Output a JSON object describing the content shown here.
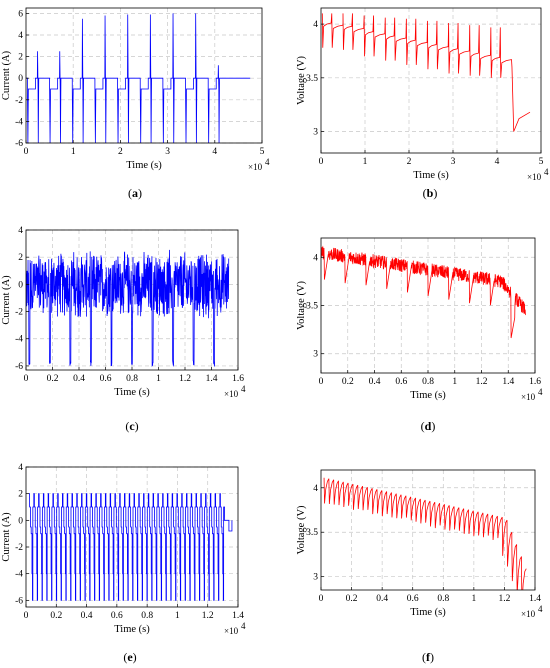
{
  "figure": {
    "panels": [
      {
        "id": "a",
        "label_open": "(",
        "label_letter": "a",
        "label_close": ")"
      },
      {
        "id": "b",
        "label_open": "(",
        "label_letter": "b",
        "label_close": ")"
      },
      {
        "id": "c",
        "label_open": "(",
        "label_letter": "c",
        "label_close": ")"
      },
      {
        "id": "d",
        "label_open": "(",
        "label_letter": "d",
        "label_close": ")"
      },
      {
        "id": "e",
        "label_open": "(",
        "label_letter": "e",
        "label_close": ")"
      },
      {
        "id": "f",
        "label_open": "(",
        "label_letter": "f",
        "label_close": ")"
      }
    ]
  },
  "chart_data": [
    {
      "id": "a",
      "type": "line",
      "color": "#0000ff",
      "xlabel": "Time (s)",
      "ylabel": "Current (A)",
      "x_multiplier": "×10",
      "x_exponent": "4",
      "xlim": [
        0,
        5
      ],
      "ylim": [
        -6,
        6.5
      ],
      "xticks": [
        "0",
        "1",
        "2",
        "3",
        "4",
        "5"
      ],
      "xtick_values": [
        0,
        1,
        2,
        3,
        4,
        5
      ],
      "yticks": [
        "-6",
        "-4",
        "-2",
        "0",
        "2",
        "4",
        "6"
      ],
      "ytick_values": [
        -6,
        -4,
        -2,
        0,
        2,
        4,
        6
      ],
      "grid": true,
      "series": [
        {
          "profile": "pulse_cycles",
          "cycles_start": [
            0.03,
            0.5,
            0.98,
            1.46,
            1.94,
            2.42,
            2.9,
            3.38,
            3.86
          ],
          "pulse_peaks": [
            2.5,
            2.5,
            5.5,
            5.8,
            5.9,
            5.9,
            6.0,
            6.0,
            1.2
          ],
          "discharge_level": -1,
          "min_spike": -6,
          "rest_level": 0,
          "end_x": 4.75
        }
      ]
    },
    {
      "id": "b",
      "type": "line",
      "color": "#ff0000",
      "xlabel": "Time (s)",
      "ylabel": "Voltage (V)",
      "x_multiplier": "×10",
      "x_exponent": "4",
      "xlim": [
        0,
        5
      ],
      "ylim": [
        2.8,
        4.15
      ],
      "xticks": [
        "0",
        "1",
        "2",
        "3",
        "4",
        "5"
      ],
      "xtick_values": [
        0,
        1,
        2,
        3,
        4,
        5
      ],
      "yticks": [
        "3",
        "3.5",
        "4"
      ],
      "ytick_values": [
        3,
        3.5,
        4
      ],
      "grid": true,
      "series": [
        {
          "profile": "voltage_steps",
          "cycle_starts": [
            0.03,
            0.5,
            0.98,
            1.46,
            1.94,
            2.42,
            2.9,
            3.38,
            3.86
          ],
          "rest_levels": [
            4.0,
            3.97,
            3.92,
            3.88,
            3.84,
            3.8,
            3.76,
            3.72,
            3.68
          ],
          "peak_levels": [
            4.1,
            4.1,
            4.08,
            4.06,
            4.05,
            4.03,
            4.01,
            3.99,
            3.97
          ],
          "dip_levels": [
            3.78,
            3.76,
            3.7,
            3.66,
            3.62,
            3.58,
            3.54,
            3.52,
            3.5
          ],
          "tail": [
            [
              4.34,
              3.6
            ],
            [
              4.38,
              3.0
            ],
            [
              4.5,
              3.12
            ],
            [
              4.75,
              3.18
            ]
          ]
        }
      ]
    },
    {
      "id": "c",
      "type": "line",
      "color": "#0000ff",
      "xlabel": "Time (s)",
      "ylabel": "Current (A)",
      "x_multiplier": "×10",
      "x_exponent": "4",
      "xlim": [
        0,
        1.6
      ],
      "ylim": [
        -6.3,
        4
      ],
      "xticks": [
        "0",
        "0.2",
        "0.4",
        "0.6",
        "0.8",
        "1",
        "1.2",
        "1.4",
        "1.6"
      ],
      "xtick_values": [
        0,
        0.2,
        0.4,
        0.6,
        0.8,
        1,
        1.2,
        1.4,
        1.6
      ],
      "yticks": [
        "-6",
        "-4",
        "-2",
        "0",
        "2",
        "4"
      ],
      "ytick_values": [
        -6,
        -4,
        -2,
        0,
        2,
        4
      ],
      "grid": true,
      "series": [
        {
          "profile": "noisy_current",
          "spike_x": [
            0.025,
            0.18,
            0.335,
            0.49,
            0.645,
            0.8,
            0.955,
            1.11,
            1.265,
            1.42
          ],
          "noise_amplitude": 2.6,
          "min_spike": -6,
          "end_x": 1.53
        }
      ]
    },
    {
      "id": "d",
      "type": "line",
      "color": "#ff0000",
      "xlabel": "Time (s)",
      "ylabel": "Voltage (V)",
      "x_multiplier": "×10",
      "x_exponent": "4",
      "xlim": [
        0,
        1.6
      ],
      "ylim": [
        2.8,
        4.2
      ],
      "xticks": [
        "0",
        "0.2",
        "0.4",
        "0.6",
        "0.8",
        "1",
        "1.2",
        "1.4",
        "1.6"
      ],
      "xtick_values": [
        0,
        0.2,
        0.4,
        0.6,
        0.8,
        1,
        1.2,
        1.4,
        1.6
      ],
      "yticks": [
        "3",
        "3.5",
        "4"
      ],
      "ytick_values": [
        3,
        3.5,
        4
      ],
      "grid": true,
      "series": [
        {
          "profile": "noisy_voltage",
          "start": 4.05,
          "mid": 3.75,
          "end": 3.45,
          "knee_x": 1.35,
          "dip_x": [
            0.025,
            0.18,
            0.335,
            0.49,
            0.645,
            0.8,
            0.955,
            1.11,
            1.265,
            1.42
          ],
          "dip_depth": 0.28,
          "noise": 0.07,
          "end_x": 1.53
        }
      ]
    },
    {
      "id": "e",
      "type": "line",
      "color": "#0000ff",
      "xlabel": "Time (s)",
      "ylabel": "Current (A)",
      "x_multiplier": "×10",
      "x_exponent": "4",
      "xlim": [
        0,
        1.4
      ],
      "ylim": [
        -6.5,
        4
      ],
      "xticks": [
        "0",
        "0.2",
        "0.4",
        "0.6",
        "0.8",
        "1",
        "1.2",
        "1.4"
      ],
      "xtick_values": [
        0,
        0.2,
        0.4,
        0.6,
        0.8,
        1,
        1.2,
        1.4
      ],
      "yticks": [
        "-6",
        "-4",
        "-2",
        "0",
        "2",
        "4"
      ],
      "ytick_values": [
        -6,
        -4,
        -2,
        0,
        2,
        4
      ],
      "grid": true,
      "series": [
        {
          "profile": "square_pulses",
          "period": 0.0315,
          "x0": 0.02,
          "x_end": 1.31,
          "levels": [
            2,
            1,
            -0.5,
            -1,
            -4,
            -6
          ],
          "tail": [
            [
              1.31,
              0
            ],
            [
              1.34,
              0
            ],
            [
              1.34,
              -0.8
            ],
            [
              1.36,
              -0.8
            ],
            [
              1.36,
              0
            ]
          ]
        }
      ]
    },
    {
      "id": "f",
      "type": "line",
      "color": "#ff0000",
      "xlabel": "Time (s)",
      "ylabel": "Voltage (V)",
      "x_multiplier": "×10",
      "x_exponent": "4",
      "xlim": [
        0,
        1.4
      ],
      "ylim": [
        2.85,
        4.2
      ],
      "xticks": [
        "0",
        "0.2",
        "0.4",
        "0.6",
        "0.8",
        "1",
        "1.2",
        "1.4"
      ],
      "xtick_values": [
        0,
        0.2,
        0.4,
        0.6,
        0.8,
        1,
        1.2,
        1.4
      ],
      "yticks": [
        "3",
        "3.5",
        "4"
      ],
      "ytick_values": [
        3,
        3.5,
        4
      ],
      "grid": true,
      "series": [
        {
          "profile": "teeth_voltage",
          "period": 0.0315,
          "x0": 0.02,
          "x_end": 1.33,
          "start": 4.1,
          "mid": 3.65,
          "knee_x": 1.18,
          "end": 3.0,
          "tooth_depth": 0.22
        }
      ]
    }
  ]
}
